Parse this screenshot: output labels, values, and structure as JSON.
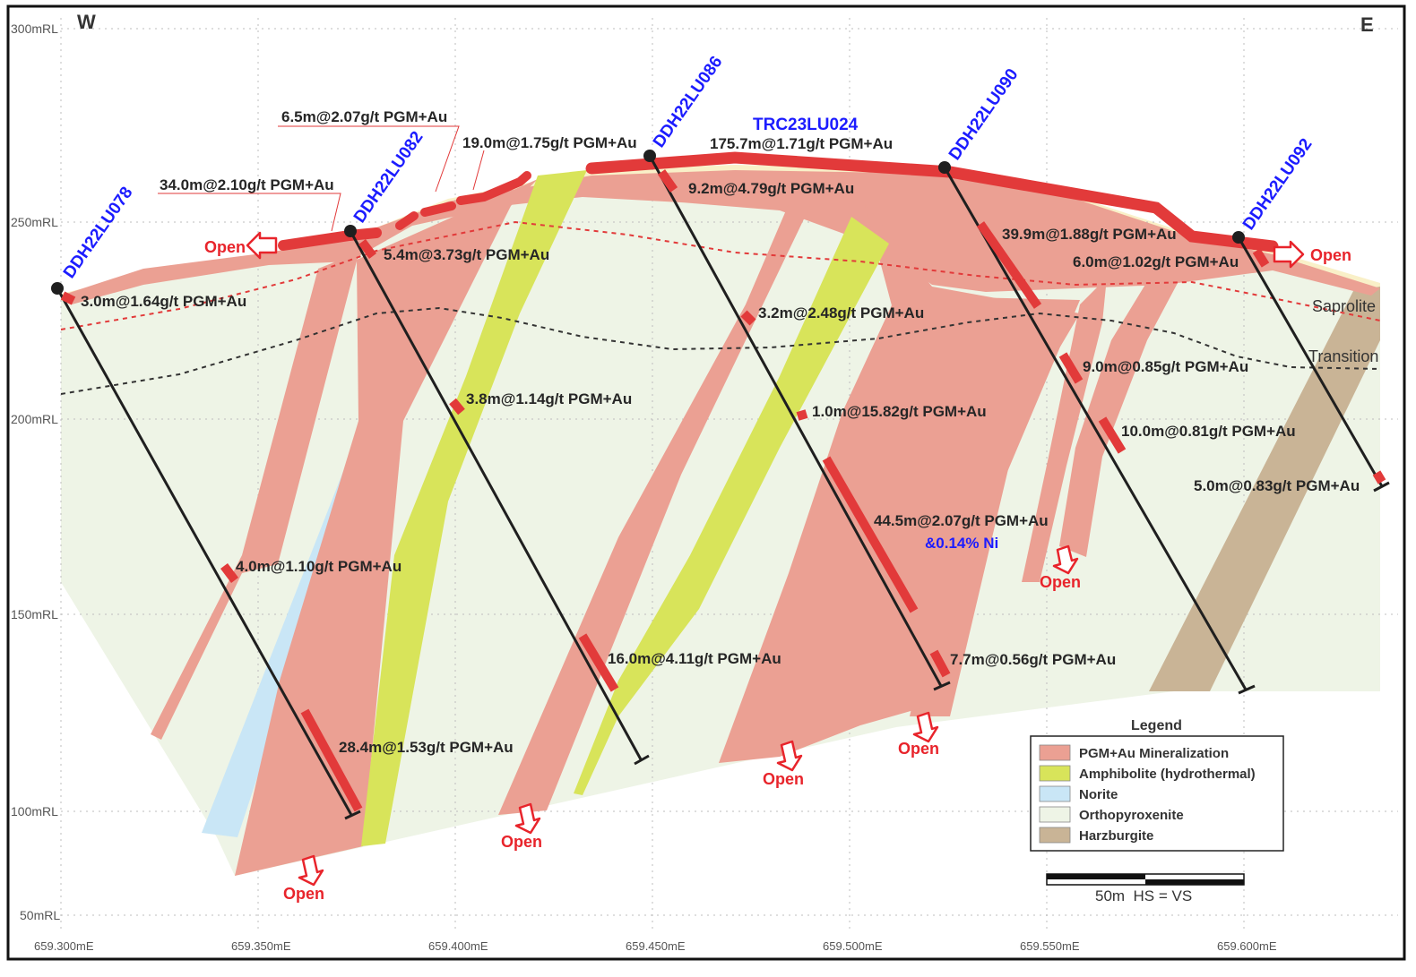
{
  "compass": {
    "west": "W",
    "east": "E"
  },
  "elevation_labels": [
    "300mRL",
    "250mRL",
    "200mRL",
    "150mRL",
    "100mRL",
    "50mRL"
  ],
  "easting_labels": [
    "659.300mE",
    "659.350mE",
    "659.400mE",
    "659.450mE",
    "659.500mE",
    "659.550mE",
    "659.600mE"
  ],
  "drillholes": [
    "DDH22LU078",
    "DDH22LU082",
    "DDH22LU086",
    "TRC23LU024",
    "DDH22LU090",
    "DDH22LU092"
  ],
  "intercepts": [
    "6.5m@2.07g/t PGM+Au",
    "19.0m@1.75g/t PGM+Au",
    "175.7m@1.71g/t PGM+Au",
    "34.0m@2.10g/t PGM+Au",
    "9.2m@4.79g/t PGM+Au",
    "5.4m@3.73g/t PGM+Au",
    "39.9m@1.88g/t PGM+Au",
    "6.0m@1.02g/t PGM+Au",
    "3.0m@1.64g/t PGM+Au",
    "3.2m@2.48g/t PGM+Au",
    "9.0m@0.85g/t PGM+Au",
    "3.8m@1.14g/t PGM+Au",
    "1.0m@15.82g/t PGM+Au",
    "10.0m@0.81g/t PGM+Au",
    "5.0m@0.83g/t PGM+Au",
    "44.5m@2.07g/t PGM+Au",
    "4.0m@1.10g/t PGM+Au",
    "16.0m@4.11g/t PGM+Au",
    "7.7m@0.56g/t PGM+Au",
    "28.4m@1.53g/t PGM+Au"
  ],
  "nickel_note": "&0.14% Ni",
  "open_label": "Open",
  "zones": {
    "saprolite": "Saprolite",
    "transition": "Transition"
  },
  "legend": {
    "title": "Legend",
    "items": [
      {
        "label": "PGM+Au Mineralization",
        "color": "#eba093"
      },
      {
        "label": "Amphibolite (hydrothermal)",
        "color": "#d8e45a"
      },
      {
        "label": "Norite",
        "color": "#c9e6f6"
      },
      {
        "label": "Orthopyroxenite",
        "color": "#eef4e6"
      },
      {
        "label": "Harzburgite",
        "color": "#c9b496"
      }
    ]
  },
  "scale_bar": {
    "label": "50m  HS = VS"
  },
  "colors": {
    "intercept_red": "#e23a3a",
    "hole_blue": "#1c1cff",
    "open_red": "#e8242b"
  }
}
